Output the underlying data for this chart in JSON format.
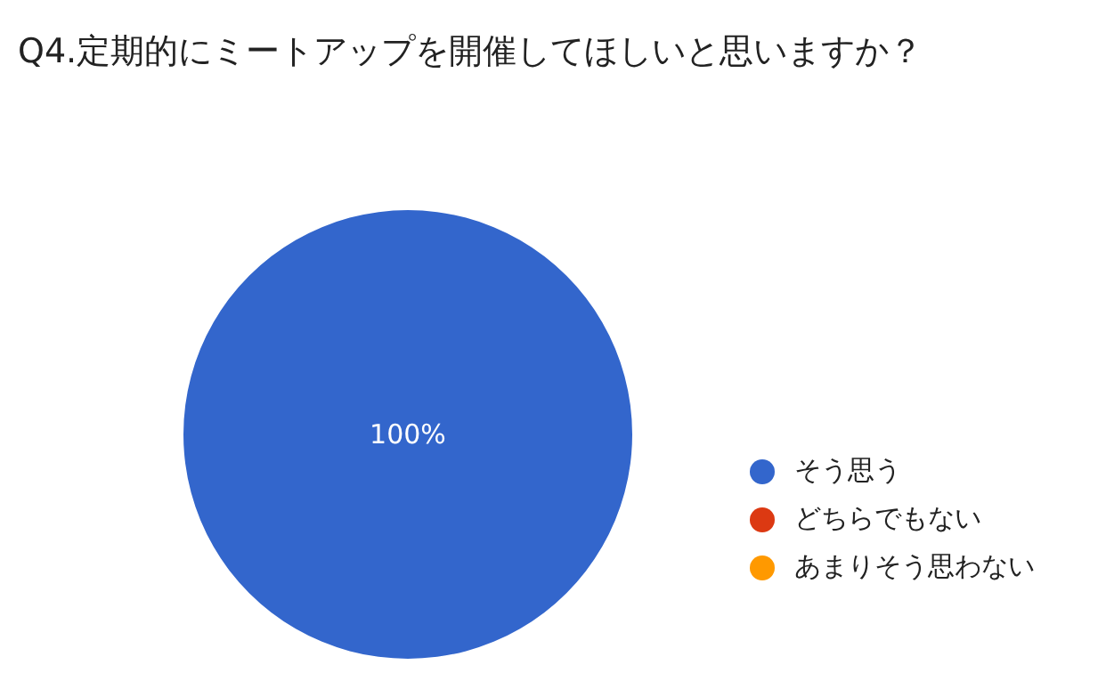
{
  "chart_data": {
    "type": "pie",
    "title": "Q4.定期的にミートアップを開催してほしいと思いますか？",
    "categories": [
      "そう思う",
      "どちらでもない",
      "あまりそう思わない"
    ],
    "values": [
      100,
      0,
      0
    ],
    "colors": [
      "#3366cc",
      "#dc3912",
      "#ff9900"
    ],
    "value_labels": [
      "100%",
      null,
      null
    ],
    "legend": "right"
  }
}
